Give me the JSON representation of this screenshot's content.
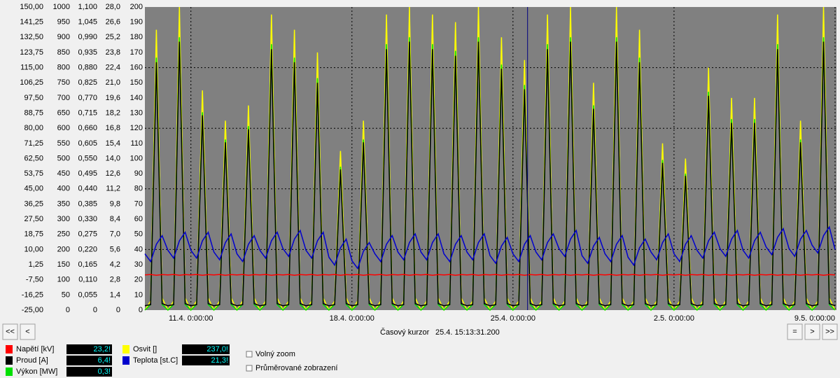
{
  "chart_data": {
    "type": "line",
    "x": [
      "9.4. 0:00:00",
      "9.4. 6:00:00",
      "9.4. 12:00:00",
      "9.4. 18:00:00",
      "10.4. 0:00:00",
      "10.4. 6:00:00",
      "10.4. 12:00:00",
      "10.4. 18:00:00",
      "11.4. 0:00:00",
      "11.4. 6:00:00",
      "11.4. 12:00:00",
      "11.4. 18:00:00",
      "12.4. 0:00:00",
      "12.4. 6:00:00",
      "12.4. 12:00:00",
      "12.4. 18:00:00",
      "13.4. 0:00:00",
      "13.4. 6:00:00",
      "13.4. 12:00:00",
      "13.4. 18:00:00",
      "14.4. 0:00:00",
      "14.4. 6:00:00",
      "14.4. 12:00:00",
      "14.4. 18:00:00",
      "15.4. 0:00:00",
      "15.4. 6:00:00",
      "15.4. 12:00:00",
      "15.4. 18:00:00",
      "16.4. 0:00:00",
      "16.4. 6:00:00",
      "16.4. 12:00:00",
      "16.4. 18:00:00",
      "17.4. 0:00:00",
      "17.4. 6:00:00",
      "17.4. 12:00:00",
      "17.4. 18:00:00",
      "18.4. 0:00:00",
      "18.4. 6:00:00",
      "18.4. 12:00:00",
      "18.4. 18:00:00",
      "19.4. 0:00:00",
      "19.4. 6:00:00",
      "19.4. 12:00:00",
      "19.4. 18:00:00",
      "20.4. 0:00:00",
      "20.4. 6:00:00",
      "20.4. 12:00:00",
      "20.4. 18:00:00",
      "21.4. 0:00:00",
      "21.4. 6:00:00",
      "21.4. 12:00:00",
      "21.4. 18:00:00",
      "22.4. 0:00:00",
      "22.4. 6:00:00",
      "22.4. 12:00:00",
      "22.4. 18:00:00",
      "23.4. 0:00:00",
      "23.4. 6:00:00",
      "23.4. 12:00:00",
      "23.4. 18:00:00",
      "24.4. 0:00:00",
      "24.4. 6:00:00",
      "24.4. 12:00:00",
      "24.4. 18:00:00",
      "25.4. 0:00:00",
      "25.4. 6:00:00",
      "25.4. 12:00:00",
      "25.4. 18:00:00",
      "26.4. 0:00:00",
      "26.4. 6:00:00",
      "26.4. 12:00:00",
      "26.4. 18:00:00",
      "27.4. 0:00:00",
      "27.4. 6:00:00",
      "27.4. 12:00:00",
      "27.4. 18:00:00",
      "28.4. 0:00:00",
      "28.4. 6:00:00",
      "28.4. 12:00:00",
      "28.4. 18:00:00",
      "29.4. 0:00:00",
      "29.4. 6:00:00",
      "29.4. 12:00:00",
      "29.4. 18:00:00",
      "30.4. 0:00:00",
      "30.4. 6:00:00",
      "30.4. 12:00:00",
      "30.4. 18:00:00",
      "1.5. 0:00:00",
      "1.5. 6:00:00",
      "1.5. 12:00:00",
      "1.5. 18:00:00",
      "2.5. 0:00:00",
      "2.5. 6:00:00",
      "2.5. 12:00:00",
      "2.5. 18:00:00",
      "3.5. 0:00:00",
      "3.5. 6:00:00",
      "3.5. 12:00:00",
      "3.5. 18:00:00",
      "4.5. 0:00:00",
      "4.5. 6:00:00",
      "4.5. 12:00:00",
      "4.5. 18:00:00",
      "5.5. 0:00:00",
      "5.5. 6:00:00",
      "5.5. 12:00:00",
      "5.5. 18:00:00",
      "6.5. 0:00:00",
      "6.5. 6:00:00",
      "6.5. 12:00:00",
      "6.5. 18:00:00",
      "7.5. 0:00:00",
      "7.5. 6:00:00",
      "7.5. 12:00:00",
      "7.5. 18:00:00",
      "8.5. 0:00:00",
      "8.5. 6:00:00",
      "8.5. 12:00:00",
      "8.5. 18:00:00",
      "9.5. 0:00:00"
    ],
    "xlim": [
      "9.4. 0:00:00",
      "9.5. 1:30:00"
    ],
    "xticks": [
      "11.4. 0:00:00",
      "18.4. 0:00:00",
      "25.4. 0:00:00",
      "2.5. 0:00:00",
      "9.5. 0:00:00"
    ],
    "grid": true,
    "grid_yticks": [
      40,
      80,
      120,
      160
    ],
    "grid_axis": 4,
    "yaxes": [
      {
        "color": "#1a1aff",
        "lim": [
          -25,
          150
        ],
        "ticks": [
          {
            "value": 150,
            "label": "150,00"
          },
          {
            "value": 141.25,
            "label": "141,25"
          },
          {
            "value": 132.5,
            "label": "132,50"
          },
          {
            "value": 123.75,
            "label": "123,75"
          },
          {
            "value": 115,
            "label": "115,00"
          },
          {
            "value": 106.25,
            "label": "106,25"
          },
          {
            "value": 97.5,
            "label": "97,50"
          },
          {
            "value": 88.75,
            "label": "88,75"
          },
          {
            "value": 80,
            "label": "80,00"
          },
          {
            "value": 71.25,
            "label": "71,25"
          },
          {
            "value": 62.5,
            "label": "62,50"
          },
          {
            "value": 53.75,
            "label": "53,75"
          },
          {
            "value": 45,
            "label": "45,00"
          },
          {
            "value": 36.25,
            "label": "36,25"
          },
          {
            "value": 27.5,
            "label": "27,50"
          },
          {
            "value": 18.75,
            "label": "18,75"
          },
          {
            "value": 10,
            "label": "10,00"
          },
          {
            "value": 1.25,
            "label": "1,25"
          },
          {
            "value": -7.5,
            "label": "-7,50"
          },
          {
            "value": -16.25,
            "label": "-16,25"
          },
          {
            "value": -25,
            "label": "-25,00"
          }
        ]
      },
      {
        "color": "#ffff00",
        "lim": [
          0,
          1000
        ],
        "ticks": [
          1000,
          950,
          900,
          850,
          800,
          750,
          700,
          650,
          600,
          550,
          500,
          450,
          400,
          350,
          300,
          250,
          200,
          150,
          100,
          50,
          0
        ]
      },
      {
        "color": "#00d000",
        "lim": [
          0,
          1.1
        ],
        "ticks": [
          {
            "value": 1.1,
            "label": "1,100"
          },
          {
            "value": 1.045,
            "label": "1,045"
          },
          {
            "value": 0.99,
            "label": "0,990"
          },
          {
            "value": 0.935,
            "label": "0,935"
          },
          {
            "value": 0.88,
            "label": "0,880"
          },
          {
            "value": 0.825,
            "label": "0,825"
          },
          {
            "value": 0.77,
            "label": "0,770"
          },
          {
            "value": 0.715,
            "label": "0,715"
          },
          {
            "value": 0.66,
            "label": "0,660"
          },
          {
            "value": 0.605,
            "label": "0,605"
          },
          {
            "value": 0.55,
            "label": "0,550"
          },
          {
            "value": 0.495,
            "label": "0,495"
          },
          {
            "value": 0.44,
            "label": "0,440"
          },
          {
            "value": 0.385,
            "label": "0,385"
          },
          {
            "value": 0.33,
            "label": "0,330"
          },
          {
            "value": 0.275,
            "label": "0,275"
          },
          {
            "value": 0.22,
            "label": "0,220"
          },
          {
            "value": 0.165,
            "label": "0,165"
          },
          {
            "value": 0.11,
            "label": "0,110"
          },
          {
            "value": 0.055,
            "label": "0,055"
          },
          0
        ]
      },
      {
        "color": "#000000",
        "lim": [
          0,
          28
        ],
        "ticks": [
          {
            "value": 28,
            "label": "28,0"
          },
          {
            "value": 26.6,
            "label": "26,6"
          },
          {
            "value": 25.2,
            "label": "25,2"
          },
          {
            "value": 23.8,
            "label": "23,8"
          },
          {
            "value": 22.4,
            "label": "22,4"
          },
          {
            "value": 21,
            "label": "21,0"
          },
          {
            "value": 19.6,
            "label": "19,6"
          },
          {
            "value": 18.2,
            "label": "18,2"
          },
          {
            "value": 16.8,
            "label": "16,8"
          },
          {
            "value": 15.4,
            "label": "15,4"
          },
          {
            "value": 14,
            "label": "14,0"
          },
          {
            "value": 12.6,
            "label": "12,6"
          },
          {
            "value": 11.2,
            "label": "11,2"
          },
          {
            "value": 9.8,
            "label": "9,8"
          },
          {
            "value": 8.4,
            "label": "8,4"
          },
          {
            "value": 7,
            "label": "7,0"
          },
          {
            "value": 5.6,
            "label": "5,6"
          },
          {
            "value": 4.2,
            "label": "4,2"
          },
          {
            "value": 2.8,
            "label": "2,8"
          },
          {
            "value": 1.4,
            "label": "1,4"
          },
          0
        ]
      },
      {
        "color": "#ff0000",
        "lim": [
          0,
          200
        ],
        "ticks": [
          200,
          190,
          180,
          170,
          160,
          150,
          140,
          130,
          120,
          110,
          100,
          90,
          80,
          70,
          60,
          50,
          40,
          30,
          20,
          10,
          0
        ]
      }
    ],
    "series": [
      {
        "name": "Napětí [kV]",
        "color": "#ff0000",
        "axis": 4,
        "readout": "23,2!",
        "values": [
          23.2,
          23.5,
          23.0,
          23.4,
          23.2,
          23.5,
          23.0,
          23.4,
          23.2,
          23.5,
          23.0,
          23.4,
          23.2,
          23.5,
          23.0,
          23.4,
          23.2,
          23.5,
          23.0,
          23.4,
          23.2,
          23.5,
          23.0,
          23.4,
          23.2,
          23.5,
          23.0,
          23.4,
          23.2,
          23.5,
          23.0,
          23.4,
          23.2,
          23.5,
          23.0,
          23.4,
          23.2,
          23.5,
          23.0,
          23.4,
          23.2,
          23.5,
          23.0,
          23.4,
          23.2,
          23.5,
          23.0,
          23.4,
          23.2,
          23.5,
          23.0,
          23.4,
          23.2,
          23.5,
          23.0,
          23.4,
          23.2,
          23.5,
          23.0,
          23.4,
          23.2,
          23.5,
          23.0,
          23.4,
          23.2,
          23.5,
          23.0,
          23.4,
          23.2,
          23.5,
          23.0,
          23.4,
          23.2,
          23.5,
          23.0,
          23.4,
          23.2,
          23.5,
          23.0,
          23.4,
          23.2,
          23.5,
          23.0,
          23.4,
          23.2,
          23.5,
          23.0,
          23.4,
          23.2,
          23.5,
          23.0,
          23.4,
          23.2,
          23.5,
          23.0,
          23.4,
          23.2,
          23.5,
          23.0,
          23.4,
          23.2,
          23.5,
          23.0,
          23.4,
          23.2,
          23.5,
          23.0,
          23.4,
          23.2,
          23.5,
          23.0,
          23.4,
          23.2,
          23.5,
          23.0,
          23.4,
          23.2,
          23.5,
          23.0,
          23.4,
          23.2
        ]
      },
      {
        "name": "Proud [A]",
        "color": "#000000",
        "axis": 3,
        "readout": "6,4!",
        "values": [
          0.4,
          0.5,
          22.9,
          0.6,
          0.4,
          0.5,
          24.8,
          0.6,
          0.4,
          0.5,
          18,
          0.6,
          0.4,
          0.5,
          15.5,
          0.6,
          0.4,
          0.5,
          16.7,
          0.6,
          0.4,
          0.5,
          24.1,
          0.6,
          0.4,
          0.5,
          22.9,
          0.6,
          0.4,
          0.5,
          21,
          0.6,
          0.4,
          0.5,
          13,
          0.6,
          0.4,
          0.5,
          15.5,
          0.6,
          0.4,
          0.5,
          24.1,
          0.6,
          0.4,
          0.5,
          24.8,
          0.6,
          0.4,
          0.5,
          24.1,
          0.6,
          0.4,
          0.5,
          23.5,
          0.6,
          0.4,
          0.5,
          24.8,
          0.6,
          0.4,
          0.5,
          22.3,
          0.6,
          0.4,
          0.5,
          20.4,
          0.6,
          0.4,
          0.5,
          24.1,
          0.6,
          0.4,
          0.5,
          24.8,
          0.6,
          0.4,
          0.5,
          18.6,
          0.6,
          0.4,
          0.5,
          24.8,
          0.6,
          0.4,
          0.5,
          22.9,
          0.6,
          0.4,
          0.5,
          13.6,
          0.6,
          0.4,
          0.5,
          12.4,
          0.6,
          0.4,
          0.5,
          19.8,
          0.6,
          0.4,
          0.5,
          17.3,
          0.6,
          0.4,
          0.5,
          17.3,
          0.6,
          0.4,
          0.5,
          24.1,
          0.6,
          0.4,
          0.5,
          15.5,
          0.6,
          0.4,
          0.5,
          24.8,
          0.6,
          0.4
        ]
      },
      {
        "name": "Výkon [MW]",
        "color": "#00e000",
        "axis": 2,
        "readout": "0,3!",
        "values": [
          0,
          0.02,
          0.916,
          0.02,
          0,
          0.02,
          0.99,
          0.02,
          0,
          0.02,
          0.718,
          0.02,
          0,
          0.02,
          0.619,
          0.02,
          0,
          0.02,
          0.668,
          0.02,
          0,
          0.02,
          0.965,
          0.02,
          0,
          0.02,
          0.916,
          0.02,
          0,
          0.02,
          0.842,
          0.02,
          0,
          0.02,
          0.52,
          0.02,
          0,
          0.02,
          0.619,
          0.02,
          0,
          0.02,
          0.965,
          0.02,
          0,
          0.02,
          0.99,
          0.02,
          0,
          0.02,
          0.965,
          0.02,
          0,
          0.02,
          0.941,
          0.02,
          0,
          0.02,
          0.99,
          0.02,
          0,
          0.02,
          0.891,
          0.02,
          0,
          0.02,
          0.817,
          0.02,
          0,
          0.02,
          0.965,
          0.02,
          0,
          0.02,
          0.99,
          0.02,
          0,
          0.02,
          0.743,
          0.02,
          0,
          0.02,
          0.99,
          0.02,
          0,
          0.02,
          0.916,
          0.02,
          0,
          0.02,
          0.545,
          0.02,
          0,
          0.02,
          0.495,
          0.02,
          0,
          0.02,
          0.792,
          0.02,
          0,
          0.02,
          0.693,
          0.02,
          0,
          0.02,
          0.693,
          0.02,
          0,
          0.02,
          0.965,
          0.02,
          0,
          0.02,
          0.619,
          0.02,
          0,
          0.02,
          0.99,
          0.02,
          0
        ]
      },
      {
        "name": "Osvit []",
        "color": "#ffff00",
        "axis": 1,
        "readout": "237,0!",
        "values": [
          0,
          30,
          925,
          40,
          0,
          30,
          1000,
          40,
          0,
          30,
          725,
          40,
          0,
          30,
          625,
          40,
          0,
          30,
          675,
          40,
          0,
          30,
          975,
          40,
          0,
          30,
          925,
          40,
          0,
          30,
          850,
          40,
          0,
          30,
          525,
          40,
          0,
          30,
          625,
          40,
          0,
          30,
          975,
          40,
          0,
          30,
          1000,
          40,
          0,
          30,
          975,
          40,
          0,
          30,
          950,
          40,
          0,
          30,
          1000,
          40,
          0,
          30,
          900,
          40,
          0,
          30,
          825,
          40,
          0,
          30,
          975,
          40,
          0,
          30,
          1000,
          40,
          0,
          30,
          750,
          40,
          0,
          30,
          1000,
          40,
          0,
          30,
          925,
          40,
          0,
          30,
          550,
          40,
          0,
          30,
          500,
          40,
          0,
          30,
          800,
          40,
          0,
          30,
          700,
          40,
          0,
          30,
          700,
          40,
          0,
          30,
          975,
          40,
          0,
          30,
          625,
          40,
          0,
          30,
          1000,
          40,
          0
        ]
      },
      {
        "name": "Teplota [st.C]",
        "color": "#0000cc",
        "axis": 0,
        "readout": "21,3!",
        "values": [
          7.5,
          3,
          13,
          18,
          9.5,
          5,
          15,
          20,
          9.5,
          5,
          15,
          20,
          8.5,
          4,
          14,
          19,
          7.5,
          3,
          13,
          18,
          9.5,
          5,
          15,
          20,
          10.5,
          6,
          16,
          21,
          9.5,
          5,
          15,
          20,
          5.5,
          1,
          11,
          16,
          3.5,
          -1,
          9,
          14,
          7.5,
          3,
          13,
          18,
          8.5,
          4,
          14,
          19,
          8.5,
          4,
          14,
          19,
          7.5,
          3,
          13,
          18,
          8.5,
          4,
          14,
          19,
          6.5,
          2,
          12,
          17,
          7.5,
          3,
          13,
          18,
          8.5,
          4,
          14,
          19,
          10.5,
          6,
          16,
          21,
          6.5,
          2,
          12,
          17,
          7.5,
          3,
          13,
          18,
          5.5,
          1,
          11,
          16,
          8.5,
          4,
          14,
          19,
          7.5,
          3,
          13,
          18,
          9.5,
          5,
          15,
          20,
          10.5,
          6,
          16,
          21,
          9.5,
          5,
          15,
          20,
          11.5,
          7,
          17,
          22,
          10.5,
          6,
          16,
          21,
          12.5,
          8,
          18,
          23,
          10
        ]
      }
    ],
    "cursor": {
      "label": "Časový kurzor",
      "time": "25.4. 15:13:31.200",
      "color": "#000080"
    }
  },
  "controls": {
    "left": [
      "<<",
      "<"
    ],
    "right": [
      "=",
      ">",
      ">>"
    ],
    "checkboxes": [
      "Volný zoom",
      "Průměrované zobrazení"
    ]
  }
}
